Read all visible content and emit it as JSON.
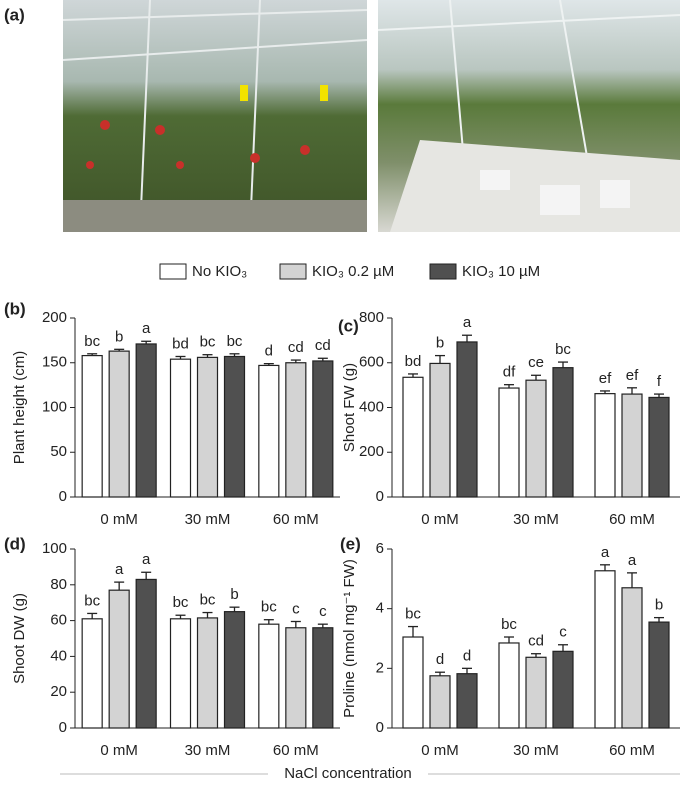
{
  "figure": {
    "photo_panel_label": "(a)",
    "xlabel": "NaCl concentration",
    "legend": [
      {
        "name": "No KIO₃",
        "color": "#ffffff"
      },
      {
        "name": "KIO₃ 0.2 µM",
        "color": "#d3d3d3"
      },
      {
        "name": "KIO₃ 10 µM",
        "color": "#505050"
      }
    ]
  },
  "chart_data": [
    {
      "type": "bar",
      "panel_label": "(b)",
      "ylabel": "Plant height (cm)",
      "categories": [
        "0 mM",
        "30 mM",
        "60 mM"
      ],
      "ylim": [
        0,
        200
      ],
      "yticks": [
        0,
        50,
        100,
        150,
        200
      ],
      "series": [
        {
          "values": [
            158,
            154,
            147
          ],
          "errors": [
            2,
            3,
            2
          ],
          "letters": [
            "bc",
            "bd",
            "d"
          ]
        },
        {
          "values": [
            163,
            156,
            150
          ],
          "errors": [
            2,
            3,
            3
          ],
          "letters": [
            "b",
            "bc",
            "cd"
          ]
        },
        {
          "values": [
            171,
            157,
            152
          ],
          "errors": [
            3,
            3,
            3
          ],
          "letters": [
            "a",
            "bc",
            "cd"
          ]
        }
      ]
    },
    {
      "type": "bar",
      "panel_label": "(c)",
      "ylabel": "Shoot FW (g)",
      "categories": [
        "0 mM",
        "30 mM",
        "60 mM"
      ],
      "ylim": [
        0,
        800
      ],
      "yticks": [
        0,
        200,
        400,
        600,
        800
      ],
      "series": [
        {
          "values": [
            535,
            487,
            462
          ],
          "errors": [
            15,
            15,
            12
          ],
          "letters": [
            "bd",
            "df",
            "ef"
          ]
        },
        {
          "values": [
            597,
            522,
            460
          ],
          "errors": [
            35,
            22,
            28
          ],
          "letters": [
            "b",
            "ce",
            "ef"
          ]
        },
        {
          "values": [
            693,
            578,
            445
          ],
          "errors": [
            30,
            25,
            15
          ],
          "letters": [
            "a",
            "bc",
            "f"
          ]
        }
      ]
    },
    {
      "type": "bar",
      "panel_label": "(d)",
      "ylabel": "Shoot DW (g)",
      "categories": [
        "0 mM",
        "30 mM",
        "60 mM"
      ],
      "ylim": [
        0,
        100
      ],
      "yticks": [
        0,
        20,
        40,
        60,
        80,
        100
      ],
      "series": [
        {
          "values": [
            61,
            61,
            58
          ],
          "errors": [
            3,
            2,
            2.5
          ],
          "letters": [
            "bc",
            "bc",
            "bc"
          ]
        },
        {
          "values": [
            77,
            61.5,
            56
          ],
          "errors": [
            4.5,
            3,
            3.5
          ],
          "letters": [
            "a",
            "bc",
            "c"
          ]
        },
        {
          "values": [
            83,
            65,
            56
          ],
          "errors": [
            4,
            2.5,
            2
          ],
          "letters": [
            "a",
            "b",
            "c"
          ]
        }
      ]
    },
    {
      "type": "bar",
      "panel_label": "(e)",
      "ylabel": "Proline (nmol mg⁻¹ FW)",
      "categories": [
        "0 mM",
        "30 mM",
        "60 mM"
      ],
      "ylim": [
        0,
        6
      ],
      "yticks": [
        0,
        2,
        4,
        6
      ],
      "series": [
        {
          "values": [
            3.05,
            2.85,
            5.27
          ],
          "errors": [
            0.35,
            0.2,
            0.2
          ],
          "letters": [
            "bc",
            "bc",
            "a"
          ]
        },
        {
          "values": [
            1.75,
            2.37,
            4.7
          ],
          "errors": [
            0.12,
            0.12,
            0.5
          ],
          "letters": [
            "d",
            "cd",
            "a"
          ]
        },
        {
          "values": [
            1.82,
            2.57,
            3.55
          ],
          "errors": [
            0.18,
            0.22,
            0.15
          ],
          "letters": [
            "d",
            "c",
            "b"
          ]
        }
      ]
    }
  ]
}
